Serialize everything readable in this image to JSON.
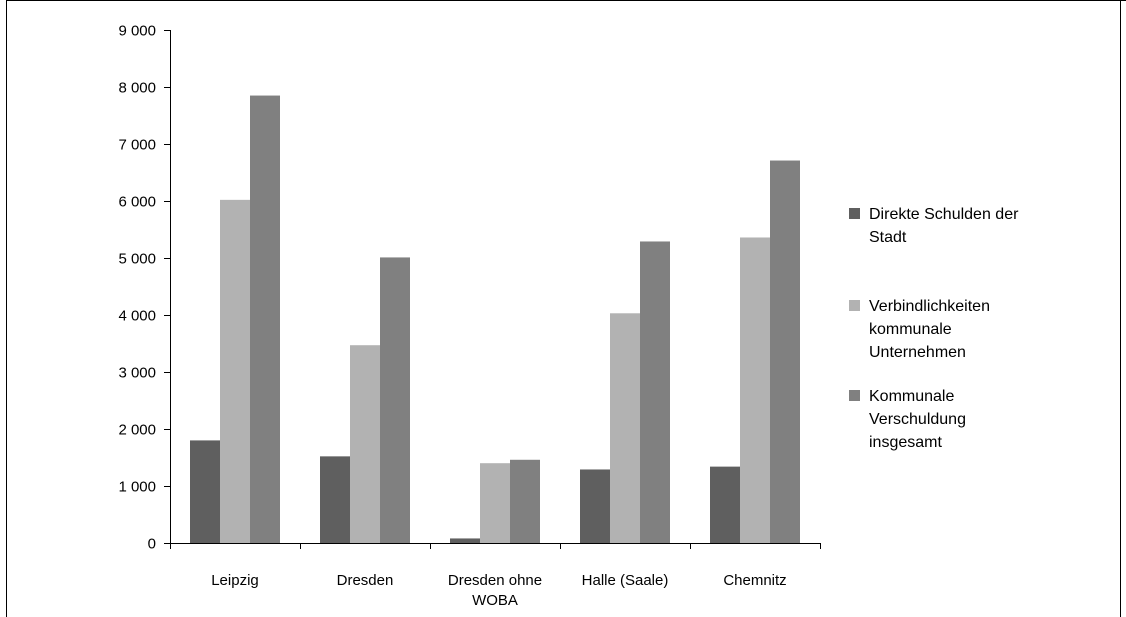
{
  "chart_data": {
    "type": "bar",
    "categories": [
      [
        "Leipzig"
      ],
      [
        "Dresden"
      ],
      [
        "Dresden ohne",
        "WOBA"
      ],
      [
        "Halle (Saale)"
      ],
      [
        "Chemnitz"
      ]
    ],
    "series": [
      {
        "name": [
          "Direkte Schulden der",
          "Stadt"
        ],
        "color": "#5f5f5f",
        "values": [
          1800,
          1520,
          80,
          1290,
          1340
        ]
      },
      {
        "name": [
          "Verbindlichkeiten",
          "kommunale",
          "Unternehmen"
        ],
        "color": "#b2b2b2",
        "values": [
          6020,
          3470,
          1400,
          4030,
          5360
        ]
      },
      {
        "name": [
          "Kommunale",
          "Verschuldung",
          "insgesamt"
        ],
        "color": "#808080",
        "values": [
          7850,
          5010,
          1460,
          5290,
          6710
        ]
      }
    ],
    "ylim": [
      0,
      9000
    ],
    "yticks": [
      "0",
      "1 000",
      "2 000",
      "3 000",
      "4 000",
      "5 000",
      "6 000",
      "7 000",
      "8 000",
      "9 000"
    ],
    "grid": false,
    "legend_position": "right"
  }
}
